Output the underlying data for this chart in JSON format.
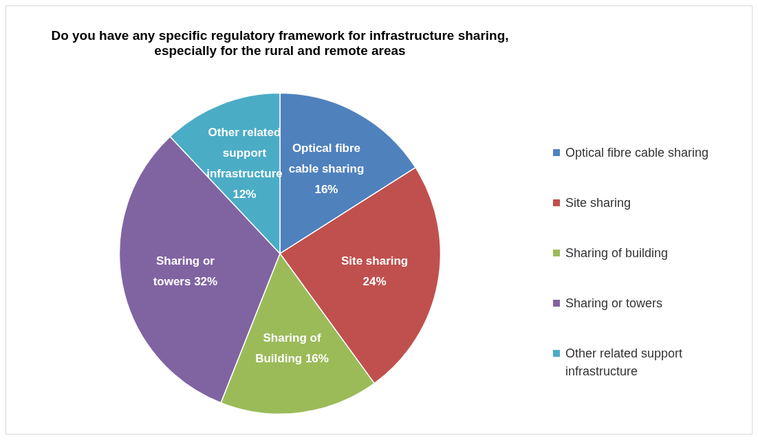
{
  "chart_data": {
    "type": "pie",
    "title": "Do you have any specific regulatory framework for infrastructure sharing, especially for the rural and remote areas",
    "categories": [
      "Optical fibre cable sharing",
      "Site sharing",
      "Sharing of building",
      "Sharing or towers",
      "Other related support infrastructure"
    ],
    "values": [
      16,
      24,
      16,
      32,
      12
    ],
    "colors": [
      "#4f81bd",
      "#c0504d",
      "#9bbb59",
      "#8064a2",
      "#4bacc6"
    ],
    "value_labels": [
      "Optical fibre cable sharing 16%",
      "Site sharing 24%",
      "Sharing of Building 16%",
      "Sharing or towers 32%",
      "Other related support infrastructure 12%"
    ],
    "legend": "right"
  }
}
